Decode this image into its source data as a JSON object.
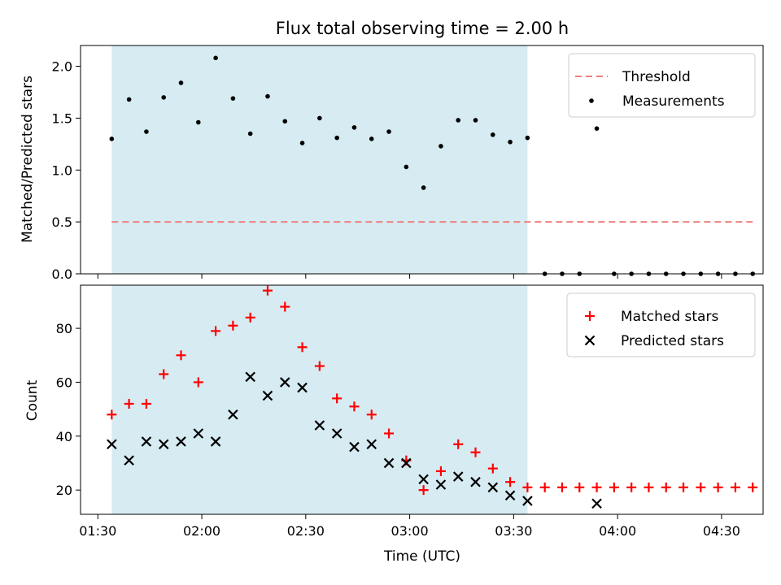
{
  "chart_data": [
    {
      "type": "scatter",
      "title": "Flux total observing time = 2.00 h",
      "ylabel": "Matched/Predicted stars",
      "xlabel": "",
      "ylim": [
        0,
        2.2
      ],
      "xlim": [
        "01:25",
        "04:42"
      ],
      "yticks": [
        0.0,
        0.5,
        1.0,
        1.5,
        2.0
      ],
      "ytick_labels": [
        "0.0",
        "0.5",
        "1.0",
        "1.5",
        "2.0"
      ],
      "shaded_region": {
        "x": [
          "01:34",
          "03:34"
        ],
        "color": "#add8e6"
      },
      "legend_position": "top-right",
      "series": [
        {
          "name": "Threshold",
          "kind": "dashed-line",
          "color": "#f08080",
          "x": [
            "01:34",
            "04:39"
          ],
          "y": [
            0.5,
            0.5
          ]
        },
        {
          "name": "Measurements",
          "kind": "dot",
          "color": "#000000",
          "x": [
            "01:34",
            "01:39",
            "01:44",
            "01:49",
            "01:54",
            "01:59",
            "02:04",
            "02:09",
            "02:14",
            "02:19",
            "02:24",
            "02:29",
            "02:34",
            "02:39",
            "02:44",
            "02:49",
            "02:54",
            "02:59",
            "03:04",
            "03:09",
            "03:14",
            "03:19",
            "03:24",
            "03:29",
            "03:34",
            "03:39",
            "03:44",
            "03:49",
            "03:54",
            "03:59",
            "04:04",
            "04:09",
            "04:14",
            "04:19",
            "04:24",
            "04:29",
            "04:34",
            "04:39"
          ],
          "y": [
            1.3,
            1.68,
            1.37,
            1.7,
            1.84,
            1.46,
            2.08,
            1.69,
            1.35,
            1.71,
            1.47,
            1.26,
            1.5,
            1.31,
            1.41,
            1.3,
            1.37,
            1.03,
            0.83,
            1.23,
            1.48,
            1.48,
            1.34,
            1.27,
            1.31,
            0.0,
            0.0,
            0.0,
            1.4,
            0.0,
            0.0,
            0.0,
            0.0,
            0.0,
            0.0,
            0.0,
            0.0,
            0.0
          ]
        }
      ]
    },
    {
      "type": "scatter",
      "title": "",
      "ylabel": "Count",
      "xlabel": "Time (UTC)",
      "ylim": [
        11,
        96
      ],
      "xlim": [
        "01:25",
        "04:42"
      ],
      "yticks": [
        20,
        40,
        60,
        80
      ],
      "ytick_labels": [
        "20",
        "40",
        "60",
        "80"
      ],
      "xticks": [
        "01:30",
        "02:00",
        "02:30",
        "03:00",
        "03:30",
        "04:00",
        "04:30"
      ],
      "xtick_labels": [
        "01:30",
        "02:00",
        "02:30",
        "03:00",
        "03:30",
        "04:00",
        "04:30"
      ],
      "shaded_region": {
        "x": [
          "01:34",
          "03:34"
        ],
        "color": "#add8e6"
      },
      "legend_position": "top-right",
      "series": [
        {
          "name": "Matched stars",
          "kind": "plus",
          "color": "#ff0000",
          "x": [
            "01:34",
            "01:39",
            "01:44",
            "01:49",
            "01:54",
            "01:59",
            "02:04",
            "02:09",
            "02:14",
            "02:19",
            "02:24",
            "02:29",
            "02:34",
            "02:39",
            "02:44",
            "02:49",
            "02:54",
            "02:59",
            "03:04",
            "03:09",
            "03:14",
            "03:19",
            "03:24",
            "03:29",
            "03:34",
            "03:39",
            "03:44",
            "03:49",
            "03:54",
            "03:59",
            "04:04",
            "04:09",
            "04:14",
            "04:19",
            "04:24",
            "04:29",
            "04:34",
            "04:39"
          ],
          "y": [
            48,
            52,
            52,
            63,
            70,
            60,
            79,
            81,
            84,
            94,
            88,
            73,
            66,
            54,
            51,
            48,
            41,
            31,
            20,
            27,
            37,
            34,
            28,
            23,
            21,
            21,
            21,
            21,
            21,
            21,
            21,
            21,
            21,
            21,
            21,
            21,
            21,
            21
          ]
        },
        {
          "name": "Predicted stars",
          "kind": "x",
          "color": "#000000",
          "x": [
            "01:34",
            "01:39",
            "01:44",
            "01:49",
            "01:54",
            "01:59",
            "02:04",
            "02:09",
            "02:14",
            "02:19",
            "02:24",
            "02:29",
            "02:34",
            "02:39",
            "02:44",
            "02:49",
            "02:54",
            "02:59",
            "03:04",
            "03:09",
            "03:14",
            "03:19",
            "03:24",
            "03:29",
            "03:34",
            "03:54"
          ],
          "y": [
            37,
            31,
            38,
            37,
            38,
            41,
            38,
            48,
            62,
            55,
            60,
            58,
            44,
            41,
            36,
            37,
            30,
            30,
            24,
            22,
            25,
            23,
            21,
            18,
            16,
            15
          ]
        }
      ]
    }
  ]
}
